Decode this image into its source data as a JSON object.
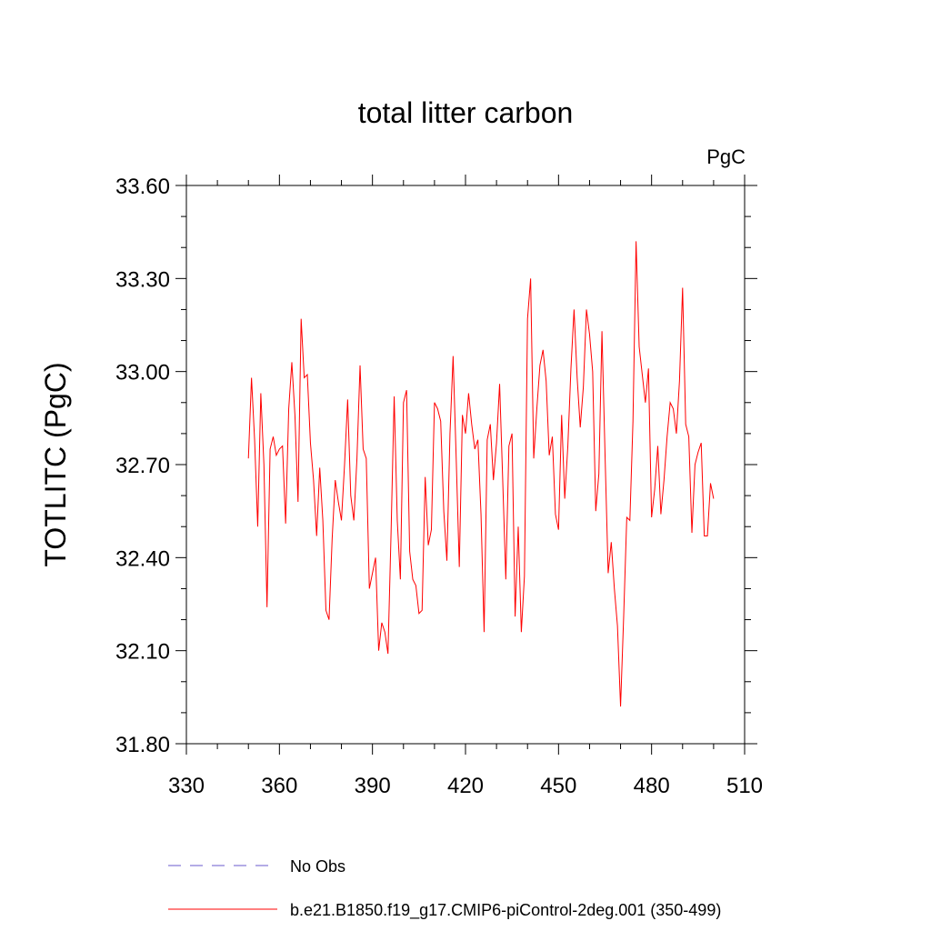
{
  "chart_data": {
    "type": "line",
    "title": "total litter carbon",
    "units_label": "PgC",
    "xlabel": "",
    "ylabel": "TOTLITC  (PgC)",
    "xlim": [
      330,
      510
    ],
    "ylim": [
      31.8,
      33.6
    ],
    "x_ticks": [
      "330",
      "360",
      "390",
      "420",
      "450",
      "480",
      "510"
    ],
    "y_ticks": [
      "31.80",
      "32.10",
      "32.40",
      "32.70",
      "33.00",
      "33.30",
      "33.60"
    ],
    "colors": {
      "model": "#ff0000",
      "obs": "#6a5acd"
    },
    "series": [
      {
        "name": "b.e21.B1850.f19_g17.CMIP6-piControl-2deg.001 (350-499)",
        "x_start": 350,
        "x_step": 1,
        "values": [
          32.72,
          32.98,
          32.78,
          32.5,
          32.93,
          32.7,
          32.24,
          32.75,
          32.79,
          32.73,
          32.75,
          32.76,
          32.51,
          32.88,
          33.03,
          32.86,
          32.58,
          33.17,
          32.98,
          32.99,
          32.77,
          32.65,
          32.47,
          32.69,
          32.52,
          32.23,
          32.2,
          32.46,
          32.65,
          32.58,
          32.52,
          32.7,
          32.91,
          32.6,
          32.52,
          32.72,
          33.02,
          32.75,
          32.72,
          32.3,
          32.35,
          32.4,
          32.1,
          32.19,
          32.16,
          32.09,
          32.48,
          32.92,
          32.52,
          32.33,
          32.9,
          32.94,
          32.42,
          32.33,
          32.31,
          32.22,
          32.23,
          32.66,
          32.44,
          32.49,
          32.9,
          32.88,
          32.84,
          32.55,
          32.39,
          32.8,
          33.05,
          32.72,
          32.37,
          32.86,
          32.8,
          32.93,
          32.83,
          32.75,
          32.78,
          32.54,
          32.16,
          32.78,
          32.83,
          32.65,
          32.77,
          32.96,
          32.65,
          32.33,
          32.76,
          32.8,
          32.21,
          32.5,
          32.16,
          32.34,
          33.17,
          33.3,
          32.72,
          32.88,
          33.02,
          33.07,
          32.97,
          32.73,
          32.79,
          32.54,
          32.49,
          32.86,
          32.59,
          32.76,
          33.01,
          33.2,
          32.98,
          32.82,
          32.95,
          33.2,
          33.12,
          33.0,
          32.55,
          32.67,
          33.13,
          32.73,
          32.35,
          32.45,
          32.3,
          32.18,
          31.92,
          32.21,
          32.53,
          32.52,
          32.84,
          33.42,
          33.08,
          32.99,
          32.9,
          33.01,
          32.53,
          32.62,
          32.76,
          32.54,
          32.65,
          32.79,
          32.9,
          32.88,
          32.8,
          32.97,
          33.27,
          32.83,
          32.79,
          32.48,
          32.7,
          32.74,
          32.77,
          32.47,
          32.47,
          32.64,
          32.59
        ]
      }
    ],
    "legend": [
      {
        "label": "No Obs",
        "style": "dashed",
        "color": "#6a5acd"
      },
      {
        "label": "b.e21.B1850.f19_g17.CMIP6-piControl-2deg.001 (350-499)",
        "style": "solid",
        "color": "#ff0000"
      }
    ]
  }
}
